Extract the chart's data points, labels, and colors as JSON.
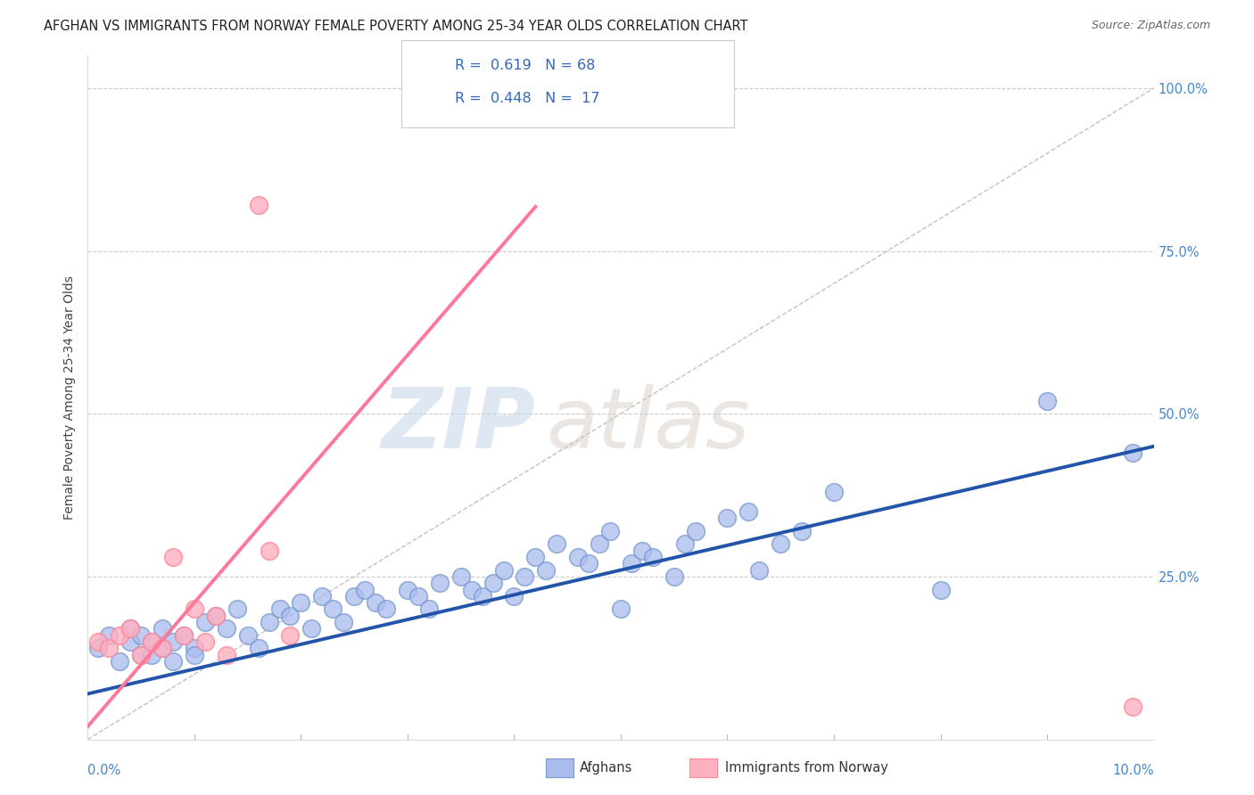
{
  "title": "AFGHAN VS IMMIGRANTS FROM NORWAY FEMALE POVERTY AMONG 25-34 YEAR OLDS CORRELATION CHART",
  "source": "Source: ZipAtlas.com",
  "ylabel": "Female Poverty Among 25-34 Year Olds",
  "blue_color": "#AABBEE",
  "pink_color": "#FFB0C0",
  "blue_line_color": "#2255AA",
  "pink_line_color": "#FF7799",
  "blue_edge_color": "#7799CC",
  "pink_edge_color": "#FF8899",
  "watermark_zip": "ZIP",
  "watermark_atlas": "atlas",
  "xmin": 0.0,
  "xmax": 0.1,
  "ymin": 0.0,
  "ymax": 1.05,
  "blue_scatter_x": [
    0.001,
    0.002,
    0.003,
    0.004,
    0.004,
    0.005,
    0.005,
    0.006,
    0.006,
    0.007,
    0.007,
    0.008,
    0.008,
    0.009,
    0.01,
    0.01,
    0.011,
    0.012,
    0.013,
    0.014,
    0.015,
    0.016,
    0.017,
    0.018,
    0.019,
    0.02,
    0.021,
    0.022,
    0.023,
    0.024,
    0.025,
    0.026,
    0.027,
    0.028,
    0.03,
    0.031,
    0.032,
    0.033,
    0.035,
    0.036,
    0.037,
    0.038,
    0.039,
    0.04,
    0.041,
    0.042,
    0.043,
    0.044,
    0.046,
    0.047,
    0.048,
    0.049,
    0.05,
    0.051,
    0.052,
    0.053,
    0.055,
    0.056,
    0.057,
    0.06,
    0.062,
    0.063,
    0.065,
    0.067,
    0.07,
    0.08,
    0.09,
    0.098
  ],
  "blue_scatter_y": [
    0.14,
    0.16,
    0.12,
    0.15,
    0.17,
    0.13,
    0.16,
    0.15,
    0.13,
    0.14,
    0.17,
    0.15,
    0.12,
    0.16,
    0.14,
    0.13,
    0.18,
    0.19,
    0.17,
    0.2,
    0.16,
    0.14,
    0.18,
    0.2,
    0.19,
    0.21,
    0.17,
    0.22,
    0.2,
    0.18,
    0.22,
    0.23,
    0.21,
    0.2,
    0.23,
    0.22,
    0.2,
    0.24,
    0.25,
    0.23,
    0.22,
    0.24,
    0.26,
    0.22,
    0.25,
    0.28,
    0.26,
    0.3,
    0.28,
    0.27,
    0.3,
    0.32,
    0.2,
    0.27,
    0.29,
    0.28,
    0.25,
    0.3,
    0.32,
    0.34,
    0.35,
    0.26,
    0.3,
    0.32,
    0.38,
    0.23,
    0.52,
    0.44
  ],
  "pink_scatter_x": [
    0.001,
    0.002,
    0.003,
    0.004,
    0.005,
    0.006,
    0.007,
    0.008,
    0.009,
    0.01,
    0.011,
    0.012,
    0.013,
    0.016,
    0.017,
    0.019,
    0.098
  ],
  "pink_scatter_y": [
    0.15,
    0.14,
    0.16,
    0.17,
    0.13,
    0.15,
    0.14,
    0.28,
    0.16,
    0.2,
    0.15,
    0.19,
    0.13,
    0.82,
    0.29,
    0.16,
    0.05
  ],
  "pink_line_x_start": 0.0,
  "pink_line_x_end": 0.042,
  "blue_line_intercept": 0.07,
  "blue_line_slope": 3.8,
  "pink_line_intercept": 0.02,
  "pink_line_slope": 19.0,
  "diag_line_color": "#CCCCCC"
}
